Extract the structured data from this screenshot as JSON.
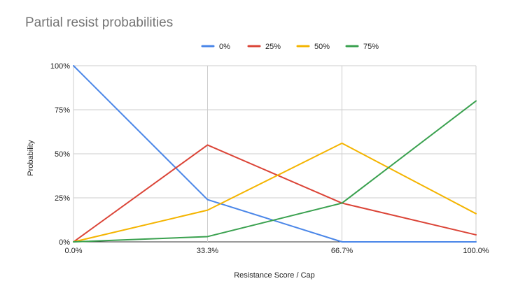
{
  "chart_data": {
    "type": "line",
    "title": "Partial resist probabilities",
    "xlabel": "Resistance Score / Cap",
    "ylabel": "Probability",
    "categories": [
      "0.0%",
      "33.3%",
      "66.7%",
      "100.0%"
    ],
    "x": [
      0,
      33.3,
      66.7,
      100
    ],
    "ylim": [
      0,
      100
    ],
    "y_ticks": [
      0,
      25,
      50,
      75,
      100
    ],
    "y_tick_labels": [
      "0%",
      "25%",
      "50%",
      "75%",
      "100%"
    ],
    "grid": true,
    "legend_position": "top",
    "series": [
      {
        "name": "0%",
        "color": "#4a86e8",
        "values": [
          100,
          24,
          0,
          0
        ]
      },
      {
        "name": "25%",
        "color": "#db4437",
        "values": [
          0,
          55,
          22,
          4
        ]
      },
      {
        "name": "50%",
        "color": "#f4b400",
        "values": [
          0,
          18,
          56,
          16
        ]
      },
      {
        "name": "75%",
        "color": "#3aa14f",
        "values": [
          0,
          3,
          22,
          80
        ]
      }
    ]
  }
}
